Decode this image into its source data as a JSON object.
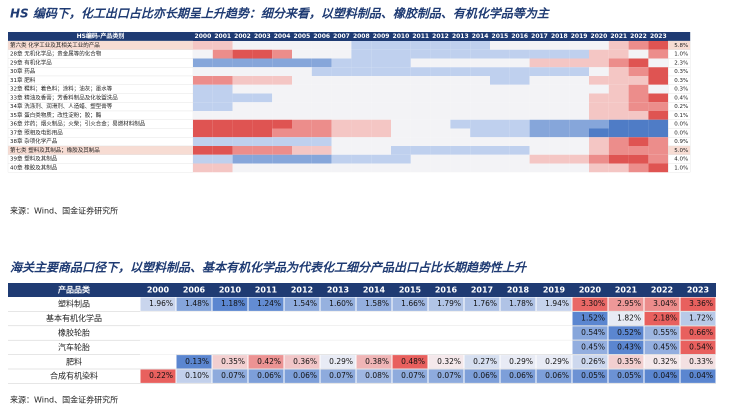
{
  "top": {
    "title": "HS 编码下，化工出口占比亦长期呈上升趋势：细分来看，以塑料制品、橡胶制品、有机化学品等为主",
    "header": [
      "HS编码-产品类别",
      "2000",
      "2001",
      "2002",
      "2003",
      "2004",
      "2005",
      "2006",
      "2007",
      "2008",
      "2009",
      "2010",
      "2011",
      "2012",
      "2013",
      "2014",
      "2015",
      "2016",
      "2017",
      "2018",
      "2019",
      "2020",
      "2021",
      "2022",
      "2023"
    ],
    "rows": [
      {
        "label": "第六类 化学工业及其相关工业的产品",
        "value": "5.8%"
      },
      {
        "label": "28章 无机化学品；贵金属等的化合物",
        "value": "1.0%"
      },
      {
        "label": "29章 有机化学品",
        "value": "2.3%"
      },
      {
        "label": "30章 药品",
        "value": "0.3%"
      },
      {
        "label": "31章 肥料",
        "value": "0.3%"
      },
      {
        "label": "32章 鞣料；着色料；涂料；油灰；墨水等",
        "value": "0.3%"
      },
      {
        "label": "33章 精油及香膏；芳香料制品及化妆盥洗品",
        "value": "0.4%"
      },
      {
        "label": "34章 洗涤剂、润滑剂、人造蜡、塑型膏等",
        "value": "0.2%"
      },
      {
        "label": "35章 蛋白类物质；改性淀粉；胶；酶",
        "value": "0.1%"
      },
      {
        "label": "36章 炸药；烟火制品；火柴；引火合金；易燃材料制品",
        "value": "0.0%"
      },
      {
        "label": "37章 照相及电影用品",
        "value": "0.0%"
      },
      {
        "label": "38章 杂项化学产品",
        "value": "0.9%"
      },
      {
        "label": "第七类 塑料及其制品；橡胶及其制品",
        "value": "5.0%"
      },
      {
        "label": "39章 塑料及其制品",
        "value": "4.0%"
      },
      {
        "label": "40章 橡胶及其制品",
        "value": "1.0%"
      }
    ],
    "source": "来源：Wind、国金证券研究所"
  },
  "bottom": {
    "title": "海关主要商品口径下，以塑料制品、基本有机化学品为代表化工细分产品出口占比长期趋势性上升",
    "header": [
      "产品品类",
      "2000",
      "2006",
      "2010",
      "2011",
      "2012",
      "2013",
      "2014",
      "2015",
      "2016",
      "2017",
      "2018",
      "2019",
      "2020",
      "2021",
      "2022",
      "2023"
    ],
    "rows": [
      {
        "label": "塑料制品",
        "cells": [
          "1.96%",
          "1.48%",
          "1.18%",
          "1.24%",
          "1.54%",
          "1.60%",
          "1.58%",
          "1.66%",
          "1.79%",
          "1.76%",
          "1.78%",
          "1.94%",
          "3.30%",
          "2.95%",
          "3.04%",
          "3.36%"
        ]
      },
      {
        "label": "基本有机化学品",
        "cells": [
          null,
          null,
          null,
          null,
          null,
          null,
          null,
          null,
          null,
          null,
          null,
          null,
          "1.52%",
          "1.82%",
          "2.18%",
          "1.72%"
        ]
      },
      {
        "label": "橡胶轮胎",
        "cells": [
          null,
          null,
          null,
          null,
          null,
          null,
          null,
          null,
          null,
          null,
          null,
          null,
          "0.54%",
          "0.52%",
          "0.55%",
          "0.66%"
        ]
      },
      {
        "label": "汽车轮胎",
        "cells": [
          null,
          null,
          null,
          null,
          null,
          null,
          null,
          null,
          null,
          null,
          null,
          null,
          "0.45%",
          "0.43%",
          "0.45%",
          "0.54%"
        ]
      },
      {
        "label": "肥料",
        "cells": [
          null,
          "0.13%",
          "0.35%",
          "0.42%",
          "0.36%",
          "0.29%",
          "0.38%",
          "0.48%",
          "0.32%",
          "0.27%",
          "0.29%",
          "0.29%",
          "0.26%",
          "0.35%",
          "0.32%",
          "0.33%"
        ]
      },
      {
        "label": "合成有机染料",
        "cells": [
          "0.22%",
          "0.10%",
          "0.07%",
          "0.06%",
          "0.06%",
          "0.07%",
          "0.08%",
          "0.07%",
          "0.07%",
          "0.06%",
          "0.06%",
          "0.06%",
          "0.05%",
          "0.05%",
          "0.04%",
          "0.04%"
        ]
      }
    ],
    "source": "来源：Wind、国金证券研究所"
  }
}
